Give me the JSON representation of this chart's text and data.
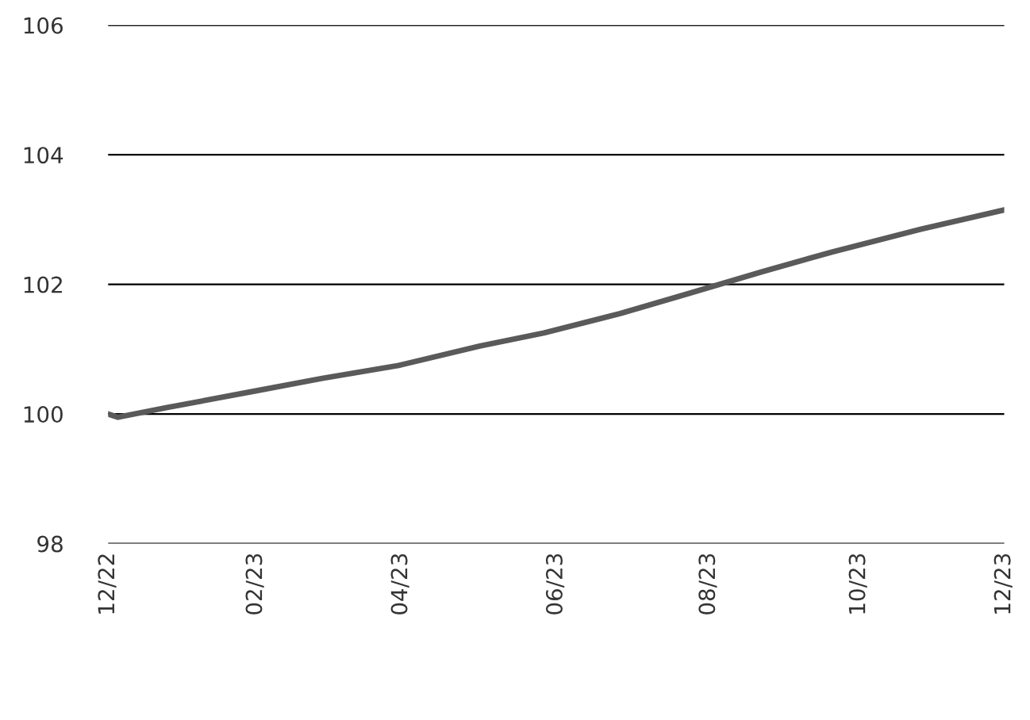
{
  "chart_data": {
    "type": "line",
    "x": [
      "2022-12-30",
      "2023-01-03",
      "2023-01-23",
      "2023-02-27",
      "2023-03-27",
      "2023-04-27",
      "2023-05-30",
      "2023-06-25",
      "2023-07-26",
      "2023-08-22",
      "2023-09-22",
      "2023-10-20",
      "2023-11-25",
      "2023-12-29"
    ],
    "series": [
      {
        "color": "#5a5a5a",
        "values": [
          100.0,
          99.95,
          100.1,
          100.35,
          100.55,
          100.75,
          101.05,
          101.25,
          101.55,
          101.85,
          102.2,
          102.5,
          102.85,
          103.15
        ]
      }
    ],
    "xlim": [
      "2022-12-30",
      "2023-12-29"
    ],
    "xticks": [
      {
        "value": "2022-12-30",
        "label": "12/22"
      },
      {
        "value": "2023-02-28",
        "label": "02/23"
      },
      {
        "value": "2023-04-28",
        "label": "04/23"
      },
      {
        "value": "2023-06-30",
        "label": "06/23"
      },
      {
        "value": "2023-08-31",
        "label": "08/23"
      },
      {
        "value": "2023-10-31",
        "label": "10/23"
      },
      {
        "value": "2023-12-29",
        "label": "12/23"
      }
    ],
    "ylim": [
      98,
      106
    ],
    "yticks": [
      98,
      100,
      102,
      104,
      106
    ],
    "grid": "y",
    "legend": false
  }
}
